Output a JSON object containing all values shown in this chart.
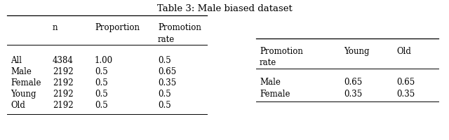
{
  "title": "Table 3: Male biased dataset",
  "table1": {
    "col_headers": [
      "",
      "n",
      "Proportion",
      "Promotion",
      "rate"
    ],
    "rows": [
      [
        "All",
        "4384",
        "1.00",
        "0.5"
      ],
      [
        "Male",
        "2192",
        "0.5",
        "0.65"
      ],
      [
        "Female",
        "2192",
        "0.5",
        "0.35"
      ],
      [
        "Young",
        "2192",
        "0.5",
        "0.5"
      ],
      [
        "Old",
        "2192",
        "0.5",
        "0.5"
      ]
    ]
  },
  "table2": {
    "col_headers_line1": [
      "Promotion",
      "Young",
      "Old"
    ],
    "col_headers_line2": [
      "rate",
      "",
      ""
    ],
    "rows": [
      [
        "Male",
        "0.65",
        "0.65"
      ],
      [
        "Female",
        "0.35",
        "0.35"
      ]
    ]
  },
  "background_color": "#ffffff",
  "font_size": 8.5,
  "title_font_size": 9.5
}
